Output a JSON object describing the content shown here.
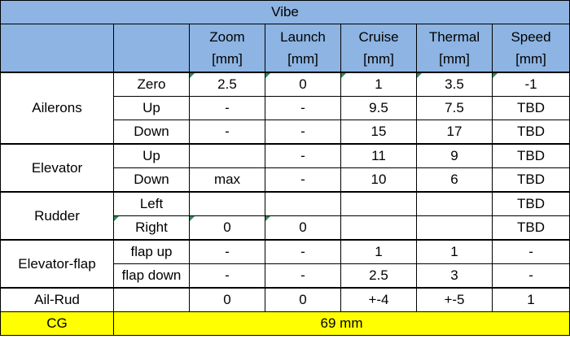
{
  "title": "Vibe",
  "columns": [
    {
      "name": "Zoom",
      "unit": "[mm]"
    },
    {
      "name": "Launch",
      "unit": "[mm]"
    },
    {
      "name": "Cruise",
      "unit": "[mm]"
    },
    {
      "name": "Thermal",
      "unit": "[mm]"
    },
    {
      "name": "Speed",
      "unit": "[mm]"
    }
  ],
  "groups": {
    "ailerons": "Ailerons",
    "elevator": "Elevator",
    "rudder": "Rudder",
    "elevator_flap": "Elevator-flap",
    "ail_rud": "Ail-Rud"
  },
  "rows": [
    {
      "sub": "Zero",
      "v": [
        "2.5",
        "0",
        "1",
        "3.5",
        "-1"
      ]
    },
    {
      "sub": "Up",
      "v": [
        "-",
        "-",
        "9.5",
        "7.5",
        "TBD"
      ]
    },
    {
      "sub": "Down",
      "v": [
        "-",
        "-",
        "15",
        "17",
        "TBD"
      ]
    },
    {
      "sub": "Up",
      "v": [
        "",
        "-",
        "11",
        "9",
        "TBD"
      ]
    },
    {
      "sub": "Down",
      "v": [
        "max",
        "-",
        "10",
        "6",
        "TBD"
      ]
    },
    {
      "sub": "Left",
      "v": [
        "",
        "",
        "",
        "",
        "TBD"
      ]
    },
    {
      "sub": "Right",
      "v": [
        "0",
        "0",
        "",
        "",
        "TBD"
      ]
    },
    {
      "sub": "flap up",
      "v": [
        "-",
        "-",
        "1",
        "1",
        "-"
      ]
    },
    {
      "sub": "flap down",
      "v": [
        "-",
        "-",
        "2.5",
        "3",
        "-"
      ]
    },
    {
      "sub": "",
      "v": [
        "0",
        "0",
        "+-4",
        "+-5",
        "1"
      ]
    }
  ],
  "cg": {
    "label": "CG",
    "value": "69 mm"
  },
  "colors": {
    "header_bg": "#8db4e2",
    "cg_bg": "#ffff00",
    "comment_flag": "#2e8b57"
  }
}
